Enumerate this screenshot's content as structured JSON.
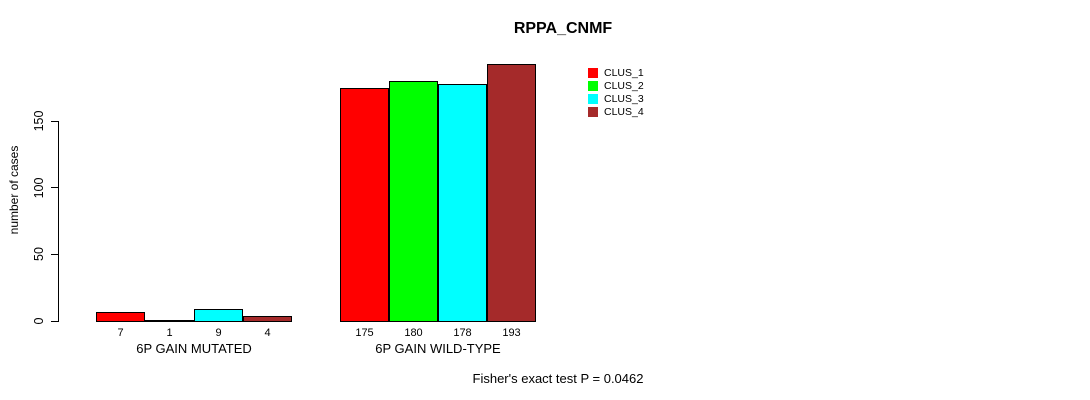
{
  "title": "RPPA_CNMF",
  "y_axis": {
    "label": "number of cases",
    "ticks": [
      0,
      50,
      100,
      150
    ]
  },
  "footer": {
    "fisher_note": "Fisher's exact test P = 0.0462"
  },
  "chart_data": {
    "type": "bar",
    "title": "RPPA_CNMF",
    "xlabel": "",
    "ylabel": "number of cases",
    "categories": [
      "6P GAIN MUTATED",
      "6P GAIN WILD-TYPE"
    ],
    "series": [
      {
        "name": "CLUS_1",
        "color": "#ff0000",
        "values": [
          7,
          175
        ]
      },
      {
        "name": "CLUS_2",
        "color": "#00ff00",
        "values": [
          1,
          180
        ]
      },
      {
        "name": "CLUS_3",
        "color": "#00ffff",
        "values": [
          9,
          178
        ]
      },
      {
        "name": "CLUS_4",
        "color": "#a52a2a",
        "values": [
          4,
          193
        ]
      }
    ],
    "yticks": [
      0,
      50,
      100,
      150
    ],
    "ylim": [
      0,
      200
    ],
    "grid": false,
    "bar_value_labels": true,
    "legend_position": "top-right",
    "annotation": "Fisher's exact test P = 0.0462",
    "bar_border_color": "#000000",
    "background_color": "#ffffff"
  }
}
